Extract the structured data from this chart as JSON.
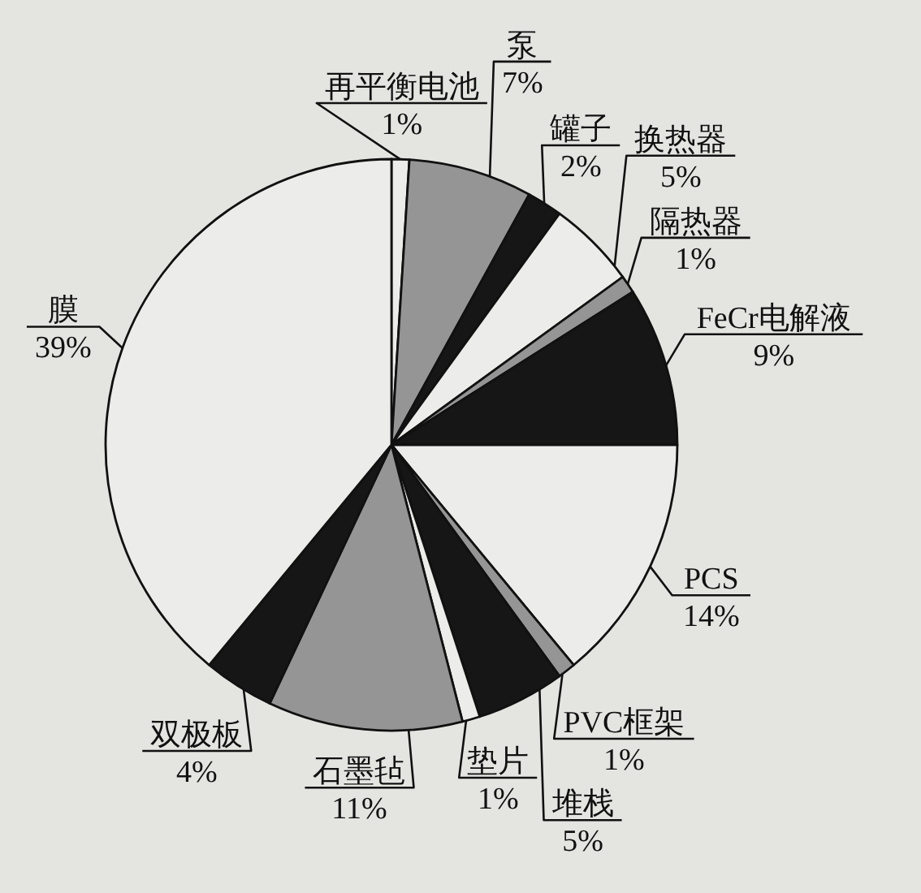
{
  "chart_data": {
    "type": "pie",
    "categories": [
      "再平衡电池",
      "泵",
      "罐子",
      "换热器",
      "隔热器",
      "FeCr电解液",
      "PCS",
      "PVC框架",
      "堆栈",
      "垫片",
      "石墨毡",
      "双极板",
      "膜"
    ],
    "values": [
      1,
      7,
      2,
      5,
      1,
      9,
      14,
      1,
      5,
      1,
      11,
      4,
      39
    ],
    "value_labels": [
      "1%",
      "7%",
      "2%",
      "5%",
      "1%",
      "9%",
      "14%",
      "1%",
      "5%",
      "1%",
      "11%",
      "4%",
      "39%"
    ],
    "colors": [
      "#ececea",
      "#959595",
      "#161616",
      "#ececea",
      "#959595",
      "#161616",
      "#ececea",
      "#959595",
      "#161616",
      "#ececea",
      "#959595",
      "#161616",
      "#ececea"
    ]
  }
}
